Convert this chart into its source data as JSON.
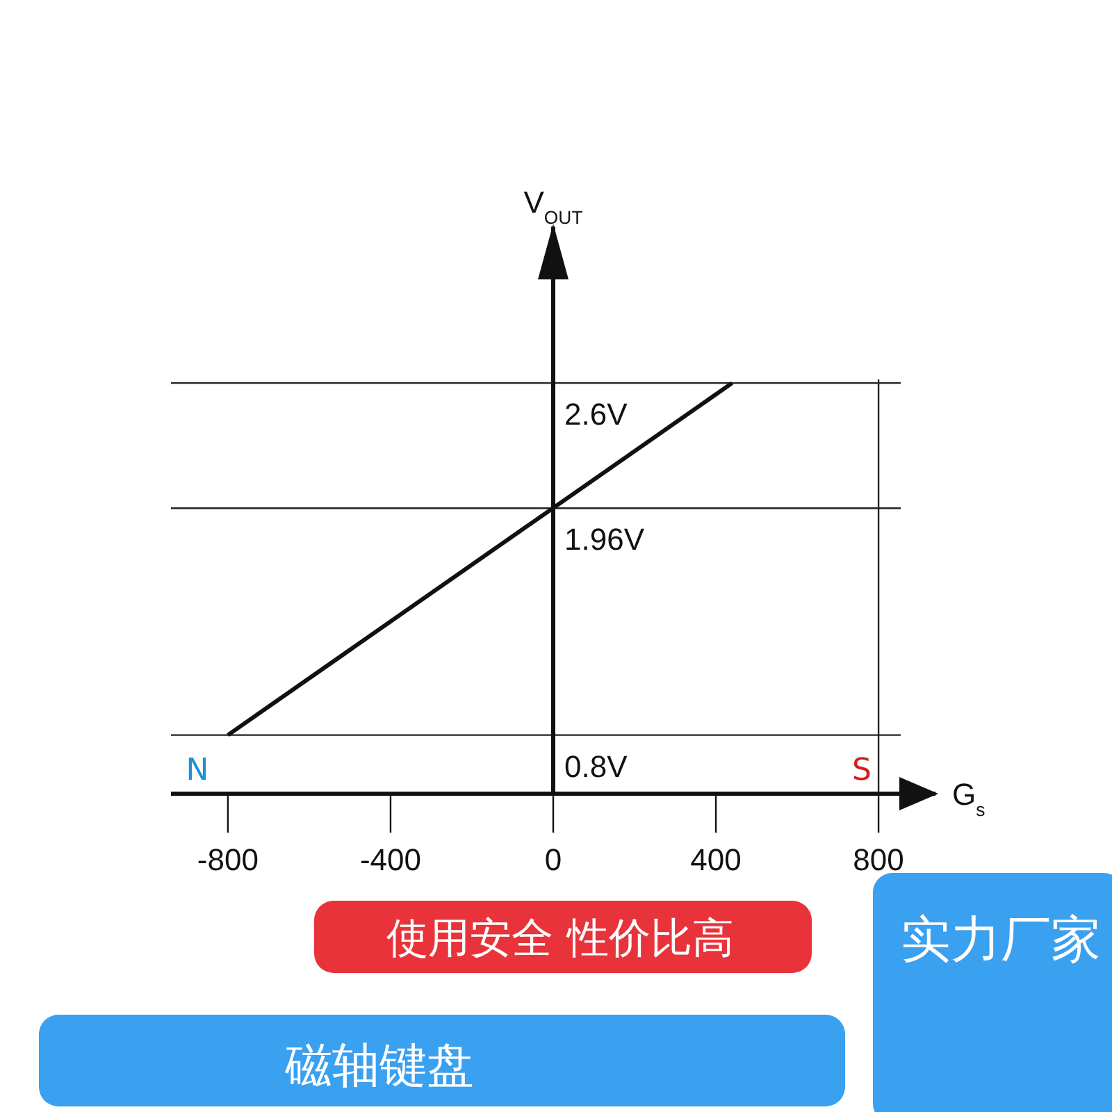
{
  "chart_data": {
    "type": "line",
    "xlabel": "G$_{s}$",
    "ylabel": "V$_{OUT}$",
    "x": [
      -800,
      440
    ],
    "series": [
      {
        "color": "#111111",
        "values": [
          0.8,
          2.6
        ]
      }
    ],
    "xlim": [
      -940,
      940
    ],
    "xticks": [
      -800,
      -400,
      0,
      400,
      800
    ],
    "ylim": [
      0.5,
      3.4
    ],
    "yticks": [
      {
        "value": 0.8,
        "label": "0.8V"
      },
      {
        "value": 1.96,
        "label": "1.96V"
      },
      {
        "value": 2.6,
        "label": "2.6V"
      }
    ],
    "ref_lines": [
      {
        "axis": "y",
        "value": 2.6,
        "color": "#222222"
      },
      {
        "axis": "y",
        "value": 1.96,
        "color": "#222222"
      },
      {
        "axis": "y",
        "value": 0.8,
        "color": "#222222"
      },
      {
        "axis": "x",
        "value": 800,
        "color": "#222222"
      }
    ],
    "annotations": [
      "N",
      "S",
      "使用安全  性价比高",
      "磁轴键盘",
      "实力厂家"
    ],
    "marker": "none",
    "line_style": "solid"
  }
}
